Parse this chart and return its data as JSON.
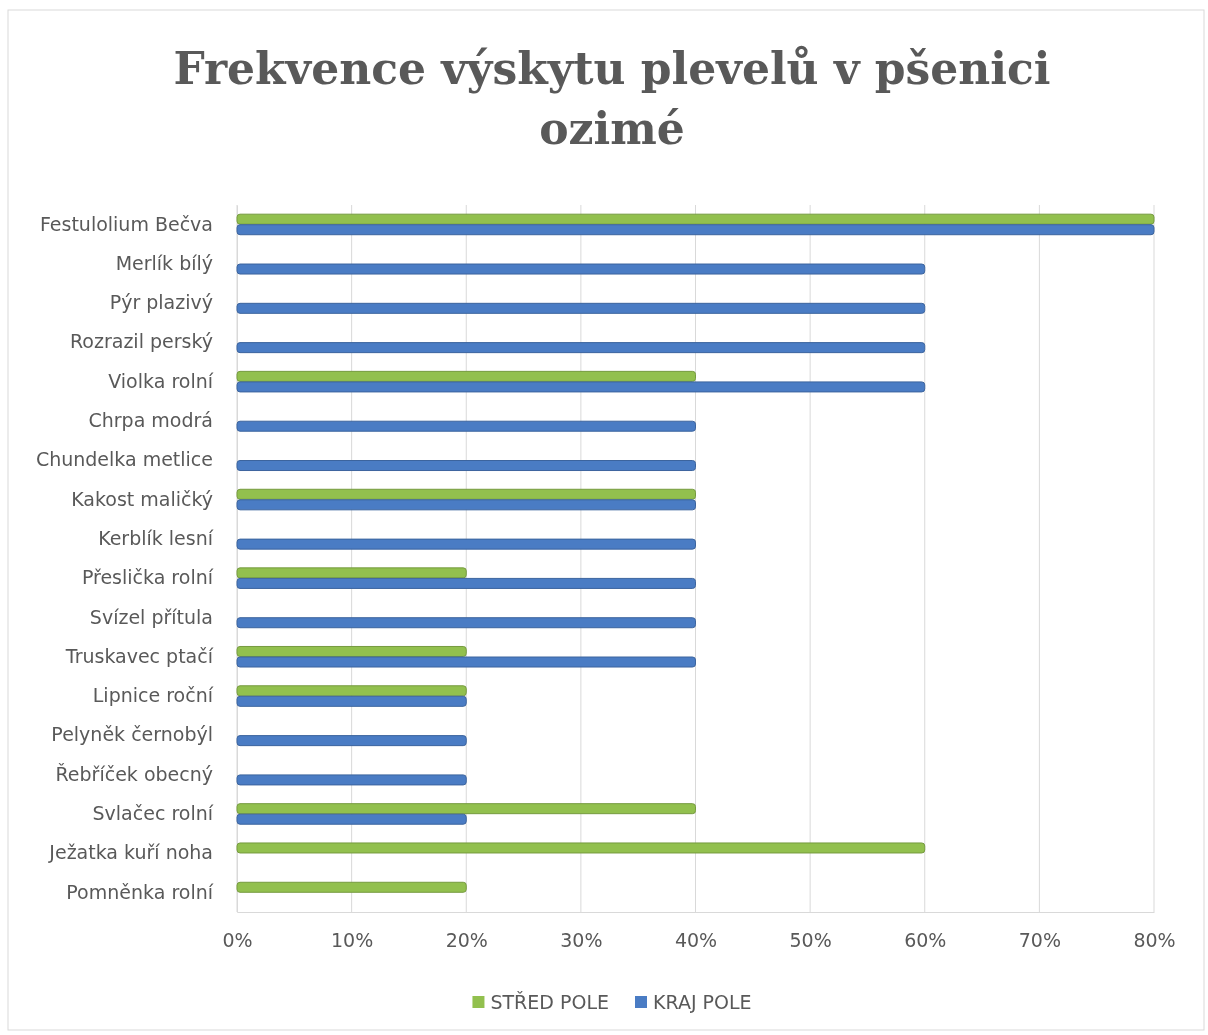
{
  "chart_data": {
    "type": "bar",
    "orientation": "horizontal",
    "title": "Frekvence výskytu plevelů v pšenici ozimé",
    "categories": [
      "Festulolium Bečva",
      "Merlík bílý",
      "Pýr plazivý",
      "Rozrazil perský",
      "Violka rolní",
      "Chrpa modrá",
      "Chundelka metlice",
      "Kakost maličký",
      "Kerblík lesní",
      "Přeslička rolní",
      "Svízel přítula",
      "Truskavec ptačí",
      "Lipnice roční",
      "Pelyněk černobýl",
      "Řebříček obecný",
      "Svlačec rolní",
      "Ježatka kuří noha",
      "Pomněnka rolní"
    ],
    "series": [
      {
        "name": "STŘED POLE",
        "color": "#92c04e",
        "values": [
          80,
          0,
          0,
          0,
          40,
          0,
          0,
          40,
          0,
          20,
          0,
          20,
          20,
          0,
          0,
          40,
          60,
          20
        ]
      },
      {
        "name": "KRAJ POLE",
        "color": "#4a7cc4",
        "values": [
          80,
          60,
          60,
          60,
          60,
          40,
          40,
          40,
          40,
          40,
          40,
          40,
          20,
          20,
          20,
          20,
          0,
          0
        ]
      }
    ],
    "xlim": [
      0,
      80
    ],
    "xticks": [
      {
        "value": 0,
        "label": "0%"
      },
      {
        "value": 10,
        "label": "10%"
      },
      {
        "value": 20,
        "label": "20%"
      },
      {
        "value": 30,
        "label": "30%"
      },
      {
        "value": 40,
        "label": "40%"
      },
      {
        "value": 50,
        "label": "50%"
      },
      {
        "value": 60,
        "label": "60%"
      },
      {
        "value": 70,
        "label": "70%"
      },
      {
        "value": 80,
        "label": "80%"
      }
    ],
    "grid": "x",
    "legend": "bottom"
  }
}
